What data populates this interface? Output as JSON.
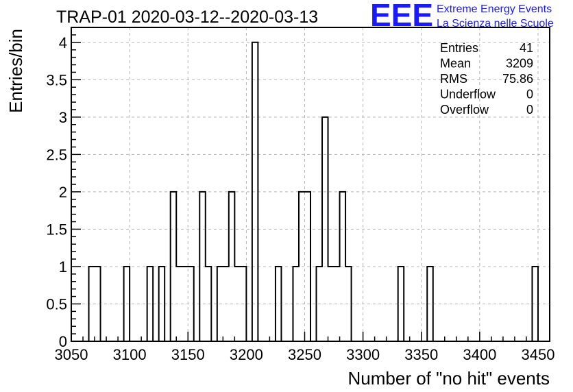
{
  "chart_data": {
    "type": "bar",
    "title": "TRAP-01 2020-03-12--2020-03-13",
    "xlabel": "Number of \"no hit\" events",
    "ylabel": "Entries/bin",
    "xlim": [
      3050,
      3460
    ],
    "ylim": [
      0,
      4.2
    ],
    "grid": true,
    "bin_width": 5,
    "x_ticks": [
      {
        "value": 3050,
        "label": "3050"
      },
      {
        "value": 3100,
        "label": "3100"
      },
      {
        "value": 3150,
        "label": "3150"
      },
      {
        "value": 3200,
        "label": "3200"
      },
      {
        "value": 3250,
        "label": "3250"
      },
      {
        "value": 3300,
        "label": "3300"
      },
      {
        "value": 3350,
        "label": "3350"
      },
      {
        "value": 3400,
        "label": "3400"
      },
      {
        "value": 3450,
        "label": "3450"
      }
    ],
    "y_ticks": [
      {
        "value": 0,
        "label": "0"
      },
      {
        "value": 0.5,
        "label": "0.5"
      },
      {
        "value": 1,
        "label": "1"
      },
      {
        "value": 1.5,
        "label": "1.5"
      },
      {
        "value": 2,
        "label": "2"
      },
      {
        "value": 2.5,
        "label": "2.5"
      },
      {
        "value": 3,
        "label": "3"
      },
      {
        "value": 3.5,
        "label": "3.5"
      },
      {
        "value": 4,
        "label": "4"
      }
    ],
    "bins": [
      {
        "low": 3065,
        "high": 3075,
        "count": 1
      },
      {
        "low": 3095,
        "high": 3100,
        "count": 1
      },
      {
        "low": 3115,
        "high": 3120,
        "count": 1
      },
      {
        "low": 3125,
        "high": 3130,
        "count": 1
      },
      {
        "low": 3135,
        "high": 3140,
        "count": 2
      },
      {
        "low": 3140,
        "high": 3155,
        "count": 1
      },
      {
        "low": 3160,
        "high": 3165,
        "count": 2
      },
      {
        "low": 3165,
        "high": 3170,
        "count": 1
      },
      {
        "low": 3175,
        "high": 3185,
        "count": 1
      },
      {
        "low": 3185,
        "high": 3190,
        "count": 2
      },
      {
        "low": 3190,
        "high": 3200,
        "count": 1
      },
      {
        "low": 3205,
        "high": 3210,
        "count": 4
      },
      {
        "low": 3225,
        "high": 3230,
        "count": 1
      },
      {
        "low": 3240,
        "high": 3245,
        "count": 1
      },
      {
        "low": 3245,
        "high": 3255,
        "count": 2
      },
      {
        "low": 3260,
        "high": 3265,
        "count": 1
      },
      {
        "low": 3265,
        "high": 3270,
        "count": 3
      },
      {
        "low": 3270,
        "high": 3280,
        "count": 1
      },
      {
        "low": 3280,
        "high": 3285,
        "count": 2
      },
      {
        "low": 3285,
        "high": 3290,
        "count": 1
      },
      {
        "low": 3330,
        "high": 3335,
        "count": 1
      },
      {
        "low": 3355,
        "high": 3360,
        "count": 1
      },
      {
        "low": 3445,
        "high": 3450,
        "count": 1
      }
    ],
    "stats": [
      {
        "label": "Entries",
        "value": "41"
      },
      {
        "label": "Mean",
        "value": "3209"
      },
      {
        "label": "RMS",
        "value": "75.86"
      },
      {
        "label": "Underflow",
        "value": "0"
      },
      {
        "label": "Overflow",
        "value": "0"
      }
    ],
    "legend_placement": "top-right"
  },
  "logo": {
    "mark": "EEE",
    "line1": "Extreme Energy Events",
    "line2": "La Scienza nelle Scuole",
    "color": "#1a1aff"
  }
}
